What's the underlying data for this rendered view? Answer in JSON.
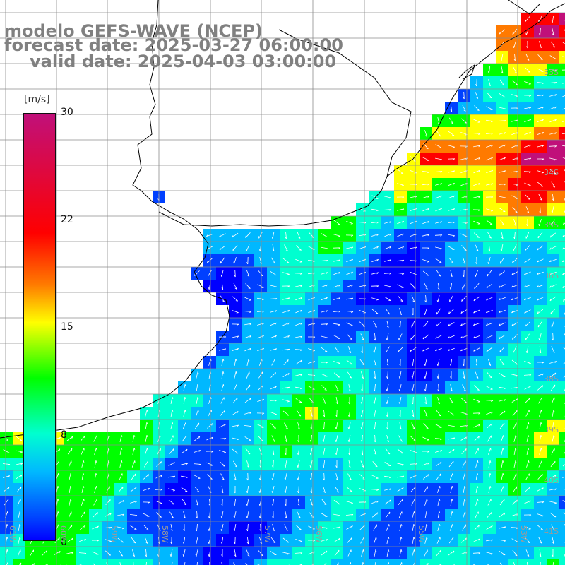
{
  "header": {
    "model": "modelo GEFS-WAVE (NCEP)",
    "forecast": "forecast date: 2025-03-27 06:00:00",
    "valid": "valid date: 2025-04-03 03:00:00"
  },
  "colorbar": {
    "units": "[m/s]",
    "ticks": [
      "30",
      "22",
      "15",
      "8",
      "0"
    ],
    "tick_values": [
      30,
      22,
      15,
      8,
      0
    ],
    "colors": [
      "#0000ff",
      "#0040ff",
      "#00b8ff",
      "#00ffd0",
      "#00ff00",
      "#ffff00",
      "#ff7a00",
      "#ff0000",
      "#c0107a"
    ]
  },
  "map": {
    "lat_labels": [
      "33S",
      "34S",
      "35S",
      "36S",
      "38S",
      "39S",
      "40S",
      "41S"
    ],
    "lon_labels": [
      "61W",
      "60W",
      "59W",
      "58W",
      "57W",
      "56W",
      "55W",
      "53W",
      "52W"
    ],
    "land_color": "#ffffff",
    "grid_color": "#8c8c8c",
    "arrow_color": "#ffffff"
  }
}
